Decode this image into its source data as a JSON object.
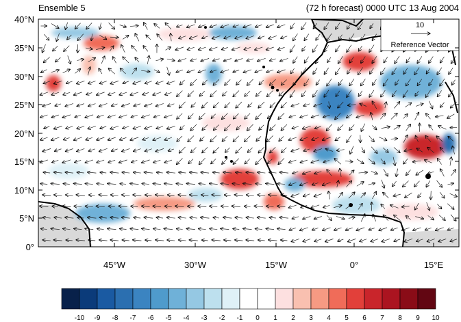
{
  "figure": {
    "left_title": "Ensemble 5",
    "right_title": "(72 h forecast) 0000 UTC 13 Aug 2004"
  },
  "map": {
    "lat_ticks": [
      "40°N",
      "35°N",
      "30°N",
      "25°N",
      "20°N",
      "15°N",
      "10°N",
      "5°N",
      "0°"
    ],
    "lon_ticks": [
      "45°W",
      "30°W",
      "15°W",
      "0°",
      "15°E"
    ],
    "land_shade": "#d9d9d9",
    "coast_color": "#000000"
  },
  "reference_vector": {
    "magnitude": "10",
    "label": "Reference Vector"
  },
  "colorbar": {
    "labels": [
      "-10",
      "-9",
      "-8",
      "-7",
      "-6",
      "-5",
      "-4",
      "-3",
      "-2",
      "-1",
      "0",
      "1",
      "2",
      "3",
      "4",
      "5",
      "6",
      "7",
      "8",
      "9",
      "10"
    ],
    "colors": [
      "#08214a",
      "#0b3b7a",
      "#1a5aa2",
      "#2b6fb0",
      "#3b84c1",
      "#4f9bcc",
      "#6fb1d8",
      "#95c8e3",
      "#bde0ee",
      "#dff1f7",
      "#ffffff",
      "#ffffff",
      "#fde0e0",
      "#f9c0b0",
      "#f69a83",
      "#f06c59",
      "#e2403a",
      "#c9252b",
      "#ab1420",
      "#8a0c17",
      "#620612"
    ]
  },
  "colors": {
    "positive_strong": "#e2403a",
    "positive_weak": "#f9c0b0",
    "negative_strong": "#2b6fb0",
    "negative_weak": "#95c8e3"
  }
}
